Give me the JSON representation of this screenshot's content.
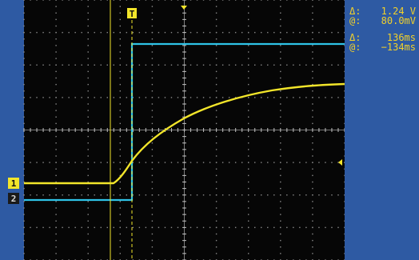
{
  "markers": {
    "trigger_time": "T",
    "ch1": "1",
    "ch2": "2"
  },
  "readouts": [
    {
      "label": "Δ:",
      "value": "1.24 V"
    },
    {
      "label": "@:",
      "value": "80.0mV"
    },
    {
      "label": "Δ:",
      "value": "136ms"
    },
    {
      "label": "@:",
      "value": "−134ms"
    }
  ],
  "colors": {
    "ch1": "#f2e52a",
    "ch2": "#2fc3e6",
    "cursor": "#f2e52a",
    "panel": "#2e5aa3",
    "screen": "#060606"
  }
}
